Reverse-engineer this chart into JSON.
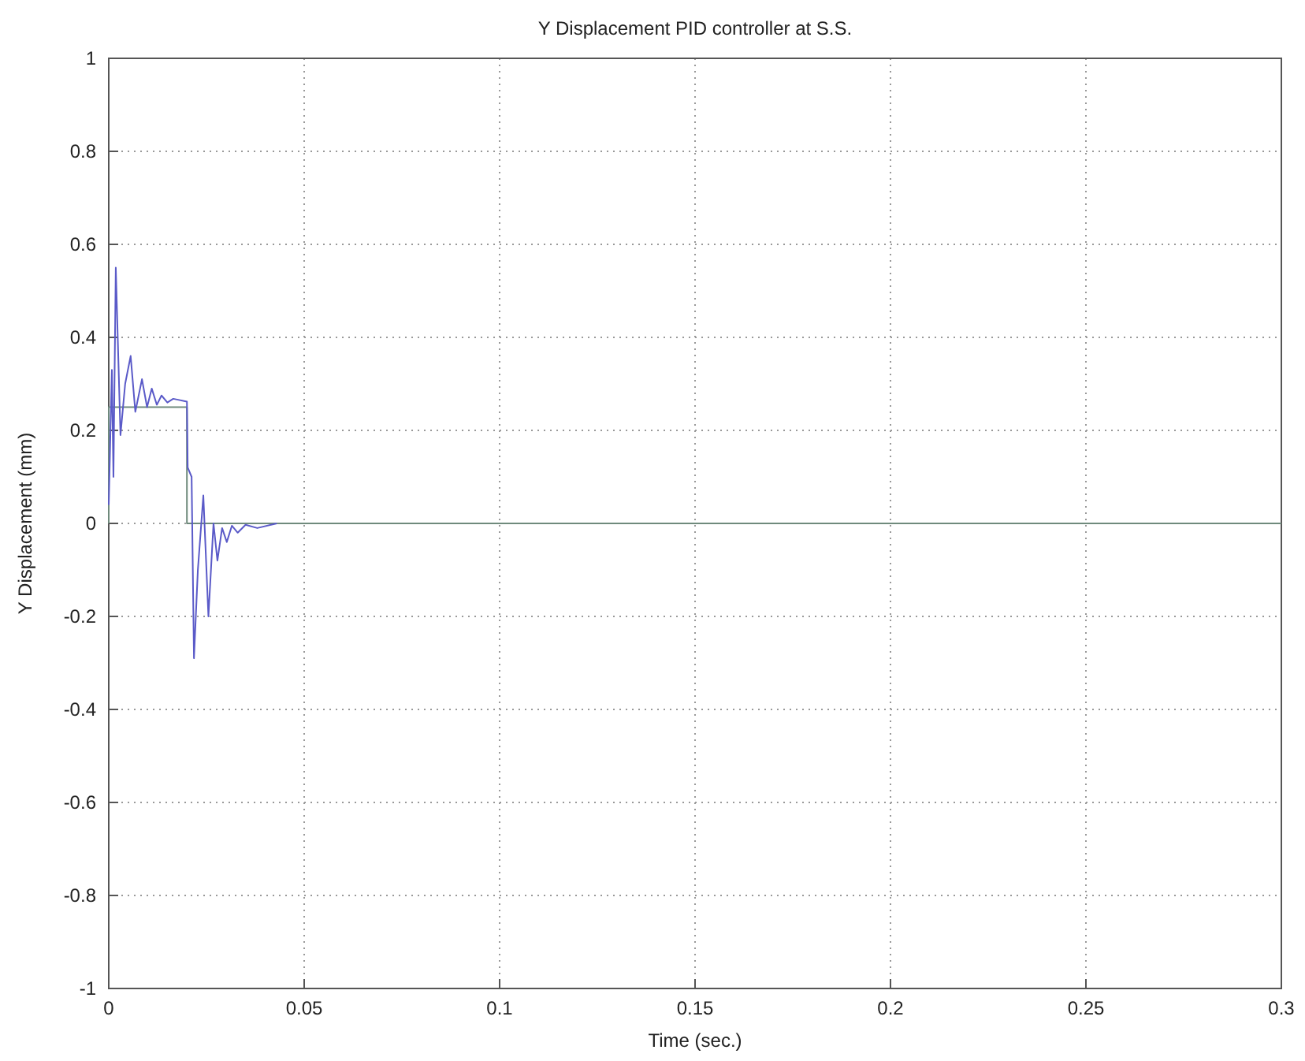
{
  "chart_data": {
    "type": "line",
    "title": "Y Displacement PID controller at S.S.",
    "xlabel": "Time (sec.)",
    "ylabel": "Y Displacement (mm)",
    "xlim": [
      0,
      0.3
    ],
    "ylim": [
      -1,
      1
    ],
    "xticks": [
      0,
      0.05,
      0.1,
      0.15,
      0.2,
      0.25,
      0.3
    ],
    "yticks": [
      -1,
      -0.8,
      -0.6,
      -0.4,
      -0.2,
      0,
      0.2,
      0.4,
      0.6,
      0.8,
      1
    ],
    "grid": true,
    "line_style": "solid",
    "marker": "none",
    "series": [
      {
        "color": "#6f8a7c",
        "x": [
          0,
          0,
          0.02,
          0.02,
          0.3
        ],
        "values": [
          0,
          0.25,
          0.25,
          0,
          0
        ]
      },
      {
        "color": "#5a5ac8",
        "x": [
          0,
          0.0008,
          0.0012,
          0.0018,
          0.003,
          0.0042,
          0.0056,
          0.0068,
          0.0085,
          0.0098,
          0.011,
          0.0123,
          0.0135,
          0.015,
          0.0165,
          0.02,
          0.0202,
          0.0212,
          0.0218,
          0.0228,
          0.0242,
          0.0255,
          0.0268,
          0.0278,
          0.029,
          0.0302,
          0.0315,
          0.033,
          0.035,
          0.038,
          0.043
        ],
        "values": [
          0.04,
          0.33,
          0.1,
          0.55,
          0.19,
          0.3,
          0.36,
          0.24,
          0.31,
          0.25,
          0.29,
          0.255,
          0.275,
          0.26,
          0.268,
          0.262,
          0.12,
          0.1,
          -0.29,
          -0.1,
          0.06,
          -0.2,
          0,
          -0.08,
          -0.01,
          -0.04,
          -0.005,
          -0.02,
          -0.003,
          -0.01,
          0
        ]
      }
    ]
  }
}
